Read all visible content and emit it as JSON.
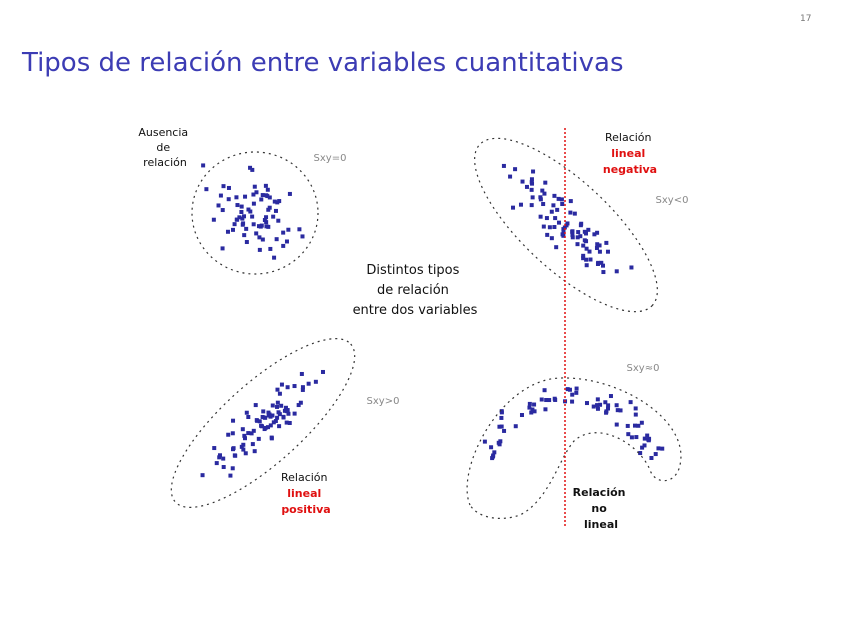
{
  "page_number": "17",
  "title": "Tipos de relación entre variables cuantitativas",
  "center_text": [
    "Distintos tipos",
    "de relación",
    "entre dos variables"
  ],
  "panels": {
    "none": {
      "label": [
        "Ausencia",
        "de",
        "relación"
      ],
      "cov": "Sxy=0"
    },
    "negative": {
      "label": [
        "Relación"
      ],
      "label_red": [
        "lineal",
        "negativa"
      ],
      "cov": "Sxy<0"
    },
    "positive": {
      "label": [
        "Relación"
      ],
      "label_red": [
        "lineal",
        "positiva"
      ],
      "cov": "Sxy>0"
    },
    "nonlinear": {
      "label": [
        "Relación",
        "no",
        "lineal"
      ],
      "cov": "Sxy≈0"
    }
  },
  "colors": {
    "title": "#3c3cb4",
    "points": "#2a2aa0",
    "highlight": "#e01010"
  }
}
